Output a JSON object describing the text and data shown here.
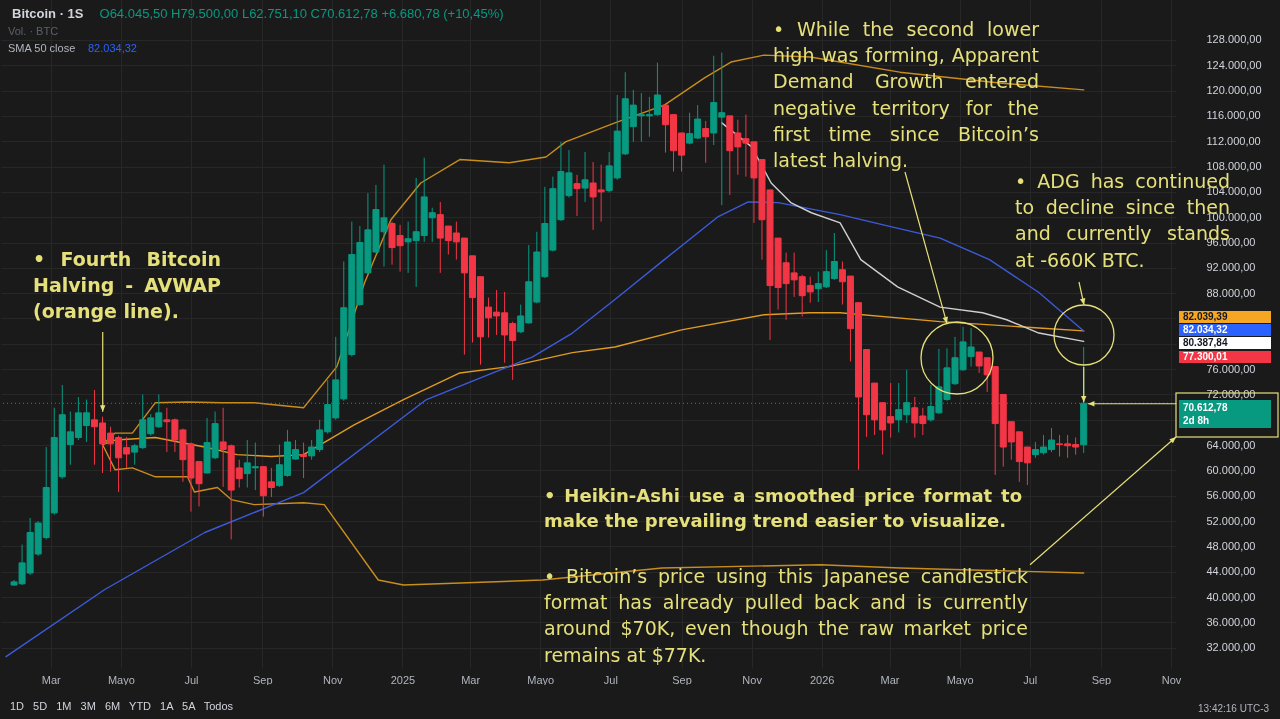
{
  "chart_data": {
    "type": "candlestick",
    "title": "Bitcoin · 1S",
    "subtitle": "O64.045,50 H79.500,00 L62.751,10 C70.612,78 +6.680,78 (+10,45%)",
    "x": [
      "2024-01-29",
      "2024-02-05",
      "2024-02-12",
      "2024-02-19",
      "2024-02-26",
      "2024-03-04",
      "2024-03-11",
      "2024-03-18",
      "2024-03-25",
      "2024-04-01",
      "2024-04-08",
      "2024-04-15",
      "2024-04-22",
      "2024-04-29",
      "2024-05-06",
      "2024-05-13",
      "2024-05-20",
      "2024-05-27",
      "2024-06-03",
      "2024-06-10",
      "2024-06-17",
      "2024-06-24",
      "2024-07-01",
      "2024-07-08",
      "2024-07-15",
      "2024-07-22",
      "2024-07-29",
      "2024-08-05",
      "2024-08-12",
      "2024-08-19",
      "2024-08-26",
      "2024-09-02",
      "2024-09-09",
      "2024-09-16",
      "2024-09-23",
      "2024-09-30",
      "2024-10-07",
      "2024-10-14",
      "2024-10-21",
      "2024-10-28",
      "2024-11-04",
      "2024-11-11",
      "2024-11-18",
      "2024-11-25",
      "2024-12-02",
      "2024-12-09",
      "2024-12-16",
      "2024-12-23",
      "2024-12-30",
      "2025-01-06",
      "2025-01-13",
      "2025-01-20",
      "2025-01-27",
      "2025-02-03",
      "2025-02-10",
      "2025-02-17",
      "2025-02-24",
      "2025-03-03",
      "2025-03-10",
      "2025-03-17",
      "2025-03-24",
      "2025-03-31",
      "2025-04-07",
      "2025-04-14",
      "2025-04-21",
      "2025-04-28",
      "2025-05-05",
      "2025-05-12",
      "2025-05-19",
      "2025-05-26",
      "2025-06-02",
      "2025-06-09",
      "2025-06-16",
      "2025-06-23",
      "2025-06-30",
      "2025-07-07",
      "2025-07-14",
      "2025-07-21",
      "2025-07-28",
      "2025-08-04",
      "2025-08-11",
      "2025-08-18",
      "2025-08-25",
      "2025-09-01",
      "2025-09-08",
      "2025-09-15",
      "2025-09-22",
      "2025-09-29",
      "2025-10-06",
      "2025-10-13",
      "2025-10-20",
      "2025-10-27",
      "2025-11-03",
      "2025-11-10",
      "2025-11-17",
      "2025-11-24",
      "2025-12-01",
      "2025-12-08",
      "2025-12-15",
      "2025-12-22",
      "2025-12-29",
      "2026-01-05",
      "2026-01-12",
      "2026-01-19",
      "2026-01-26",
      "2026-02-02",
      "2026-02-09",
      "2026-02-16",
      "2026-02-23",
      "2026-03-02",
      "2026-03-09",
      "2026-03-16",
      "2026-03-23",
      "2026-03-30",
      "2026-04-06",
      "2026-04-13",
      "2026-04-20",
      "2026-04-27",
      "2026-05-04",
      "2026-05-11",
      "2026-05-18",
      "2026-05-25",
      "2026-06-01",
      "2026-06-08",
      "2026-06-15",
      "2026-06-22",
      "2026-06-29",
      "2026-07-06",
      "2026-07-13",
      "2026-07-20",
      "2026-07-27",
      "2026-08-03",
      "2026-08-10",
      "2026-08-17"
    ],
    "ohlc": [
      [
        41900,
        42700,
        41800,
        42400
      ],
      [
        42100,
        48300,
        41900,
        45400
      ],
      [
        43800,
        52500,
        43500,
        50200
      ],
      [
        46800,
        52000,
        46500,
        51700
      ],
      [
        49400,
        63700,
        49100,
        57300
      ],
      [
        53300,
        69900,
        53000,
        65200
      ],
      [
        59000,
        73500,
        58700,
        68800
      ],
      [
        64100,
        69300,
        60900,
        66100
      ],
      [
        65200,
        71600,
        64800,
        69100
      ],
      [
        67100,
        71200,
        64500,
        69100
      ],
      [
        68000,
        72700,
        60900,
        66900
      ],
      [
        67500,
        68500,
        59600,
        64200
      ],
      [
        65900,
        66900,
        59800,
        64200
      ],
      [
        65200,
        65500,
        56600,
        62000
      ],
      [
        63600,
        65300,
        60400,
        62600
      ],
      [
        62900,
        64200,
        60900,
        63900
      ],
      [
        63600,
        72000,
        63400,
        68000
      ],
      [
        65800,
        68900,
        65500,
        68300
      ],
      [
        66900,
        72000,
        66700,
        69100
      ],
      [
        68000,
        69900,
        62900,
        67700
      ],
      [
        68000,
        68200,
        62900,
        64800
      ],
      [
        66400,
        66600,
        58200,
        61700
      ],
      [
        64200,
        64400,
        53500,
        58800
      ],
      [
        61400,
        61500,
        54300,
        57900
      ],
      [
        59600,
        68300,
        59500,
        64400
      ],
      [
        62000,
        69300,
        61800,
        67400
      ],
      [
        64500,
        69900,
        57400,
        63300
      ],
      [
        63900,
        64100,
        49100,
        56900
      ],
      [
        60400,
        61700,
        57300,
        58700
      ],
      [
        59500,
        64800,
        57300,
        61200
      ],
      [
        60400,
        64400,
        56900,
        60600
      ],
      [
        60600,
        60700,
        52700,
        56000
      ],
      [
        58200,
        60400,
        55800,
        57300
      ],
      [
        57600,
        64100,
        57400,
        60900
      ],
      [
        59200,
        66400,
        59000,
        64500
      ],
      [
        61800,
        64800,
        61700,
        63300
      ],
      [
        62500,
        64400,
        58800,
        62200
      ],
      [
        62300,
        64800,
        61700,
        63700
      ],
      [
        63300,
        68000,
        62900,
        66400
      ],
      [
        66100,
        74300,
        65800,
        70400
      ],
      [
        68300,
        81100,
        68000,
        74300
      ],
      [
        71300,
        93000,
        71000,
        85700
      ],
      [
        78300,
        99300,
        78000,
        94100
      ],
      [
        86200,
        98600,
        86000,
        96000
      ],
      [
        91200,
        103800,
        91000,
        98000
      ],
      [
        94500,
        105100,
        94300,
        101200
      ],
      [
        97700,
        108300,
        92200,
        99900
      ],
      [
        99000,
        99300,
        92500,
        95200
      ],
      [
        97100,
        98800,
        91400,
        95500
      ],
      [
        96100,
        99300,
        91200,
        96600
      ],
      [
        96300,
        106200,
        89000,
        97700
      ],
      [
        97100,
        109400,
        96100,
        103200
      ],
      [
        99900,
        101500,
        96100,
        100700
      ],
      [
        100400,
        102400,
        91200,
        96700
      ],
      [
        98600,
        98600,
        94100,
        96300
      ],
      [
        97500,
        99300,
        93300,
        96100
      ],
      [
        96700,
        96700,
        78300,
        91200
      ],
      [
        93900,
        93900,
        80200,
        87300
      ],
      [
        90600,
        90600,
        76700,
        81100
      ],
      [
        85800,
        87300,
        81000,
        84100
      ],
      [
        85000,
        88500,
        81400,
        84400
      ],
      [
        84900,
        88200,
        77000,
        81400
      ],
      [
        83200,
        83500,
        74300,
        80500
      ],
      [
        81900,
        86200,
        81700,
        84400
      ],
      [
        83300,
        95600,
        83200,
        89800
      ],
      [
        86600,
        97700,
        86400,
        94500
      ],
      [
        90600,
        104800,
        90400,
        99000
      ],
      [
        94800,
        106400,
        94600,
        104500
      ],
      [
        99600,
        111900,
        99400,
        107200
      ],
      [
        103400,
        110600,
        103100,
        107000
      ],
      [
        105300,
        106700,
        100200,
        104500
      ],
      [
        104600,
        110300,
        102400,
        105900
      ],
      [
        105400,
        108700,
        98000,
        103200
      ],
      [
        104300,
        108300,
        99300,
        104000
      ],
      [
        104200,
        110300,
        103900,
        108100
      ],
      [
        106200,
        119300,
        105900,
        113600
      ],
      [
        110000,
        122900,
        109800,
        118700
      ],
      [
        114300,
        120100,
        111900,
        117700
      ],
      [
        116000,
        119600,
        111900,
        116200
      ],
      [
        116000,
        119000,
        112700,
        116200
      ],
      [
        116200,
        124400,
        116000,
        119300
      ],
      [
        117700,
        117700,
        110200,
        114600
      ],
      [
        116200,
        116200,
        107200,
        110500
      ],
      [
        113300,
        113300,
        107200,
        109800
      ],
      [
        111700,
        116500,
        111500,
        113200
      ],
      [
        112500,
        117700,
        112300,
        115500
      ],
      [
        114000,
        115200,
        108600,
        112700
      ],
      [
        113300,
        125500,
        111400,
        118100
      ],
      [
        115800,
        126000,
        101900,
        116500
      ],
      [
        116000,
        116000,
        103500,
        110500
      ],
      [
        113300,
        115400,
        106700,
        111100
      ],
      [
        112400,
        116200,
        106400,
        111700
      ],
      [
        111900,
        111900,
        99100,
        106200
      ],
      [
        109100,
        109100,
        93300,
        99600
      ],
      [
        104300,
        104300,
        80600,
        89200
      ],
      [
        96700,
        96700,
        85400,
        88900
      ],
      [
        92800,
        94400,
        83800,
        89500
      ],
      [
        91200,
        94400,
        87400,
        90100
      ],
      [
        90600,
        90900,
        84300,
        87600
      ],
      [
        89200,
        90600,
        86500,
        88200
      ],
      [
        88700,
        91400,
        86600,
        89500
      ],
      [
        89000,
        94800,
        88800,
        91400
      ],
      [
        90300,
        97500,
        90100,
        93000
      ],
      [
        91700,
        93000,
        86200,
        89800
      ],
      [
        90700,
        90700,
        77200,
        82400
      ],
      [
        86500,
        86500,
        60100,
        71600
      ],
      [
        79100,
        79100,
        65300,
        68800
      ],
      [
        73800,
        73800,
        65600,
        68000
      ],
      [
        70700,
        70700,
        62500,
        66400
      ],
      [
        68500,
        73800,
        65200,
        67500
      ],
      [
        68000,
        73800,
        66000,
        69600
      ],
      [
        68800,
        75900,
        67500,
        70700
      ],
      [
        69900,
        71600,
        65200,
        67500
      ],
      [
        68600,
        69900,
        65600,
        67400
      ],
      [
        68000,
        73500,
        67700,
        70100
      ],
      [
        69100,
        79200,
        68900,
        73200
      ],
      [
        71200,
        79300,
        71000,
        76200
      ],
      [
        73700,
        81100,
        73500,
        77800
      ],
      [
        75900,
        82700,
        75700,
        80300
      ],
      [
        78000,
        82500,
        76400,
        79500
      ],
      [
        78700,
        78700,
        75400,
        76500
      ],
      [
        77800,
        77800,
        72400,
        75100
      ],
      [
        76400,
        76400,
        59300,
        67400
      ],
      [
        72000,
        72000,
        60600,
        63700
      ],
      [
        67700,
        67700,
        61700,
        64500
      ],
      [
        66100,
        66100,
        58200,
        61400
      ],
      [
        63700,
        63700,
        57700,
        61200
      ],
      [
        62500,
        64500,
        62000,
        63300
      ],
      [
        62800,
        65600,
        62500,
        63700
      ],
      [
        63300,
        66700,
        62900,
        64800
      ],
      [
        64200,
        65600,
        62200,
        64100
      ],
      [
        64200,
        65600,
        62000,
        63900
      ],
      [
        64100,
        65200,
        62500,
        63700
      ],
      [
        64045.5,
        79500,
        62751.1,
        70612.78
      ]
    ],
    "colors": [
      "#089981",
      "#089981",
      "#089981",
      "#089981",
      "#089981",
      "#089981",
      "#089981",
      "#089981",
      "#089981",
      "#089981",
      "#f23645",
      "#f23645",
      "#f23645",
      "#f23645",
      "#f23645",
      "#089981",
      "#089981",
      "#089981",
      "#089981",
      "#f23645",
      "#f23645",
      "#f23645",
      "#f23645",
      "#f23645",
      "#089981",
      "#089981",
      "#f23645",
      "#f23645",
      "#f23645",
      "#089981",
      "#089981",
      "#f23645",
      "#f23645",
      "#089981",
      "#089981",
      "#089981",
      "#f23645",
      "#089981",
      "#089981",
      "#089981",
      "#089981",
      "#089981",
      "#089981",
      "#089981",
      "#089981",
      "#089981",
      "#089981",
      "#f23645",
      "#f23645",
      "#089981",
      "#089981",
      "#089981",
      "#089981",
      "#f23645",
      "#f23645",
      "#f23645",
      "#f23645",
      "#f23645",
      "#f23645",
      "#f23645",
      "#f23645",
      "#f23645",
      "#f23645",
      "#089981",
      "#089981",
      "#089981",
      "#089981",
      "#089981",
      "#089981",
      "#089981",
      "#f23645",
      "#089981",
      "#f23645",
      "#f23645",
      "#089981",
      "#089981",
      "#089981",
      "#089981",
      "#089981",
      "#089981",
      "#089981",
      "#f23645",
      "#f23645",
      "#f23645",
      "#089981",
      "#089981",
      "#f23645",
      "#089981",
      "#089981",
      "#f23645",
      "#f23645",
      "#f23645",
      "#f23645",
      "#f23645",
      "#f23645",
      "#f23645",
      "#f23645",
      "#f23645",
      "#f23645",
      "#f23645",
      "#089981",
      "#089981",
      "#089981",
      "#f23645",
      "#f23645",
      "#f23645",
      "#f23645",
      "#f23645",
      "#f23645",
      "#f23645",
      "#089981",
      "#089981",
      "#f23645",
      "#f23645",
      "#089981",
      "#089981",
      "#089981",
      "#089981",
      "#089981",
      "#089981",
      "#f23645",
      "#f23645",
      "#f23645",
      "#f23645",
      "#f23645",
      "#f23645",
      "#f23645",
      "#089981",
      "#089981",
      "#089981",
      "#f23645",
      "#f23645",
      "#f23645",
      "#089981"
    ],
    "series": [
      {
        "type": "line",
        "color": "#e09b20",
        "x": [
          "2024-04-15",
          "2024-04-26",
          "2024-05-31",
          "2024-06-20",
          "2024-07-13",
          "2024-08-10",
          "2024-09-09",
          "2024-10-07",
          "2024-11-20",
          "2025-01-02",
          "2025-02-20",
          "2025-04-04",
          "2025-05-29",
          "2025-07-05",
          "2025-09-01",
          "2025-11-12",
          "2025-12-22",
          "2026-01-17",
          "2026-04-14",
          "2026-07-09",
          "2026-08-17"
        ],
        "values": [
          64100,
          64800,
          65200,
          64500,
          63700,
          62500,
          62200,
          62500,
          67200,
          71200,
          75400,
          76400,
          78600,
          79500,
          82200,
          84600,
          84900,
          84900,
          83500,
          82500,
          82039.39
        ]
      },
      {
        "type": "line",
        "color": "#c98d1e",
        "x": [
          "2024-04-15",
          "2024-04-26",
          "2024-05-11",
          "2024-05-31",
          "2024-06-28",
          "2024-07-28",
          "2024-08-25",
          "2024-10-07",
          "2024-11-05",
          "2024-11-29",
          "2024-12-22",
          "2025-01-17",
          "2025-02-20",
          "2025-04-04",
          "2025-05-06",
          "2025-05-23",
          "2025-07-05",
          "2025-08-17",
          "2025-09-21",
          "2025-10-14",
          "2025-11-12",
          "2025-12-22",
          "2026-03-10",
          "2026-06-05",
          "2026-08-17"
        ],
        "values": [
          64100,
          65900,
          65900,
          70700,
          70800,
          70700,
          70700,
          69900,
          76400,
          89600,
          99600,
          105400,
          109100,
          108600,
          109500,
          111900,
          114900,
          117700,
          122000,
          124500,
          125600,
          125300,
          122900,
          121200,
          120100
        ]
      },
      {
        "type": "line",
        "color": "#c98d1e",
        "x": [
          "2024-04-15",
          "2024-04-26",
          "2024-05-11",
          "2024-05-31",
          "2024-06-28",
          "2024-07-04",
          "2024-07-24",
          "2024-08-05",
          "2024-08-25",
          "2024-10-07",
          "2024-10-25",
          "2024-12-11",
          "2025-01-02",
          "2025-05-03",
          "2025-08-15",
          "2025-12-31",
          "2026-03-10",
          "2026-08-17"
        ],
        "values": [
          64100,
          60100,
          60400,
          59000,
          59000,
          56600,
          57300,
          55400,
          54600,
          54900,
          54600,
          42700,
          41900,
          42700,
          44600,
          45100,
          44600,
          43800
        ]
      },
      {
        "type": "line",
        "color": "#3b5bdb",
        "x": [
          "2024-01-22",
          "2024-04-17",
          "2024-07-13",
          "2024-10-07",
          "2025-01-22",
          "2025-04-24",
          "2025-05-29",
          "2025-07-05",
          "2025-08-17",
          "2025-10-03",
          "2025-10-29",
          "2025-11-24",
          "2026-01-17",
          "2026-03-02",
          "2026-04-14",
          "2026-05-27",
          "2026-07-09",
          "2026-08-17"
        ],
        "values": [
          30600,
          41200,
          50200,
          56500,
          71200,
          77900,
          81700,
          87000,
          93300,
          100100,
          102400,
          102300,
          100400,
          98500,
          96700,
          93300,
          88100,
          82034.32
        ]
      },
      {
        "type": "line",
        "color": "#d0d0d0",
        "x": [
          "2025-10-06",
          "2025-11-01",
          "2025-11-18",
          "2025-12-05",
          "2025-12-23",
          "2026-01-17",
          "2026-02-04",
          "2026-03-08",
          "2026-04-14",
          "2026-05-21",
          "2026-06-11",
          "2026-07-09",
          "2026-08-17"
        ],
        "values": [
          114900,
          111100,
          105400,
          102300,
          100700,
          99100,
          93300,
          89000,
          85800,
          84900,
          83800,
          81700,
          80387.84
        ]
      }
    ],
    "xlim": [
      "2024-01-22",
      "2026-11-01"
    ],
    "ylim": [
      28800,
      134300
    ],
    "xticks": [
      {
        "value": "2024-03-01",
        "label": "Mar"
      },
      {
        "value": "2024-05-01",
        "label": "Mayo"
      },
      {
        "value": "2024-07-01",
        "label": "Jul"
      },
      {
        "value": "2024-09-01",
        "label": "Sep"
      },
      {
        "value": "2024-11-01",
        "label": "Nov"
      },
      {
        "value": "2025-01-01",
        "label": "2025"
      },
      {
        "value": "2025-03-01",
        "label": "Mar"
      },
      {
        "value": "2025-05-01",
        "label": "Mayo"
      },
      {
        "value": "2025-07-01",
        "label": "Jul"
      },
      {
        "value": "2025-09-01",
        "label": "Sep"
      },
      {
        "value": "2025-11-01",
        "label": "Nov"
      },
      {
        "value": "2026-01-01",
        "label": "2026"
      },
      {
        "value": "2026-03-01",
        "label": "Mar"
      },
      {
        "value": "2026-05-01",
        "label": "Mayo"
      },
      {
        "value": "2026-07-01",
        "label": "Jul"
      },
      {
        "value": "2026-09-01",
        "label": "Sep"
      },
      {
        "value": "2026-11-01",
        "label": "Nov"
      }
    ],
    "yticks": [
      {
        "value": 32000,
        "label": "32.000,00"
      },
      {
        "value": 36000,
        "label": "36.000,00"
      },
      {
        "value": 40000,
        "label": "40.000,00"
      },
      {
        "value": 44000,
        "label": "44.000,00"
      },
      {
        "value": 48000,
        "label": "48.000,00"
      },
      {
        "value": 52000,
        "label": "52.000,00"
      },
      {
        "value": 56000,
        "label": "56.000,00"
      },
      {
        "value": 60000,
        "label": "60.000,00"
      },
      {
        "value": 64000,
        "label": "64.000,00"
      },
      {
        "value": 68000,
        "label": null
      },
      {
        "value": 72000,
        "label": "72.000,00"
      },
      {
        "value": 76000,
        "label": "76.000,00"
      },
      {
        "value": 80000,
        "label": null
      },
      {
        "value": 84000,
        "label": null
      },
      {
        "value": 88000,
        "label": "88.000,00"
      },
      {
        "value": 92000,
        "label": "92.000,00"
      },
      {
        "value": 96000,
        "label": "96.000,00"
      },
      {
        "value": 100000,
        "label": "100.000,00"
      },
      {
        "value": 104000,
        "label": "104.000,00"
      },
      {
        "value": 108000,
        "label": "108.000,00"
      },
      {
        "value": 112000,
        "label": "112.000,00"
      },
      {
        "value": 116000,
        "label": "116.000,00"
      },
      {
        "value": 120000,
        "label": "120.000,00"
      },
      {
        "value": 124000,
        "label": "124.000,00"
      },
      {
        "value": 128000,
        "label": "128.000,00"
      }
    ],
    "grid": true,
    "ref_lines": [
      {
        "axis": "y",
        "value": 70612.78,
        "label": "70.612,78\n2d 8h",
        "color": "#089981",
        "line_style": "dotted"
      }
    ],
    "annotations": [
      {
        "text": "• Fourth Bitcoin Halving - AVWAP (orange line).",
        "x": "2024-04-15",
        "y": 68800
      },
      {
        "text": "• While the second lower high was forming, Apparent Demand Growth entered negative territory for the first time since Bitcoin’s latest halving.",
        "x": "2026-04-20",
        "y": 83200
      },
      "• ADG has continued to decline since then and currently stands at -660K BTC.",
      "• Heikin-Ashi use a smoothed price format to make the prevailing trend easier to visualize.",
      "• Bitcoin’s price using this Japanese candlestick format has already pulled back and is currently around $70K, even though the raw market price remains at $77K.",
      "82.039,39",
      "82.034,32",
      "80.387,84",
      "77.300,01",
      "Vol. · BTC",
      "SMA 50 close",
      "82.034,32",
      "1D 5D 1M 3M 6M YTD 1A 5A Todos",
      "13:42:16 UTC-3"
    ]
  }
}
